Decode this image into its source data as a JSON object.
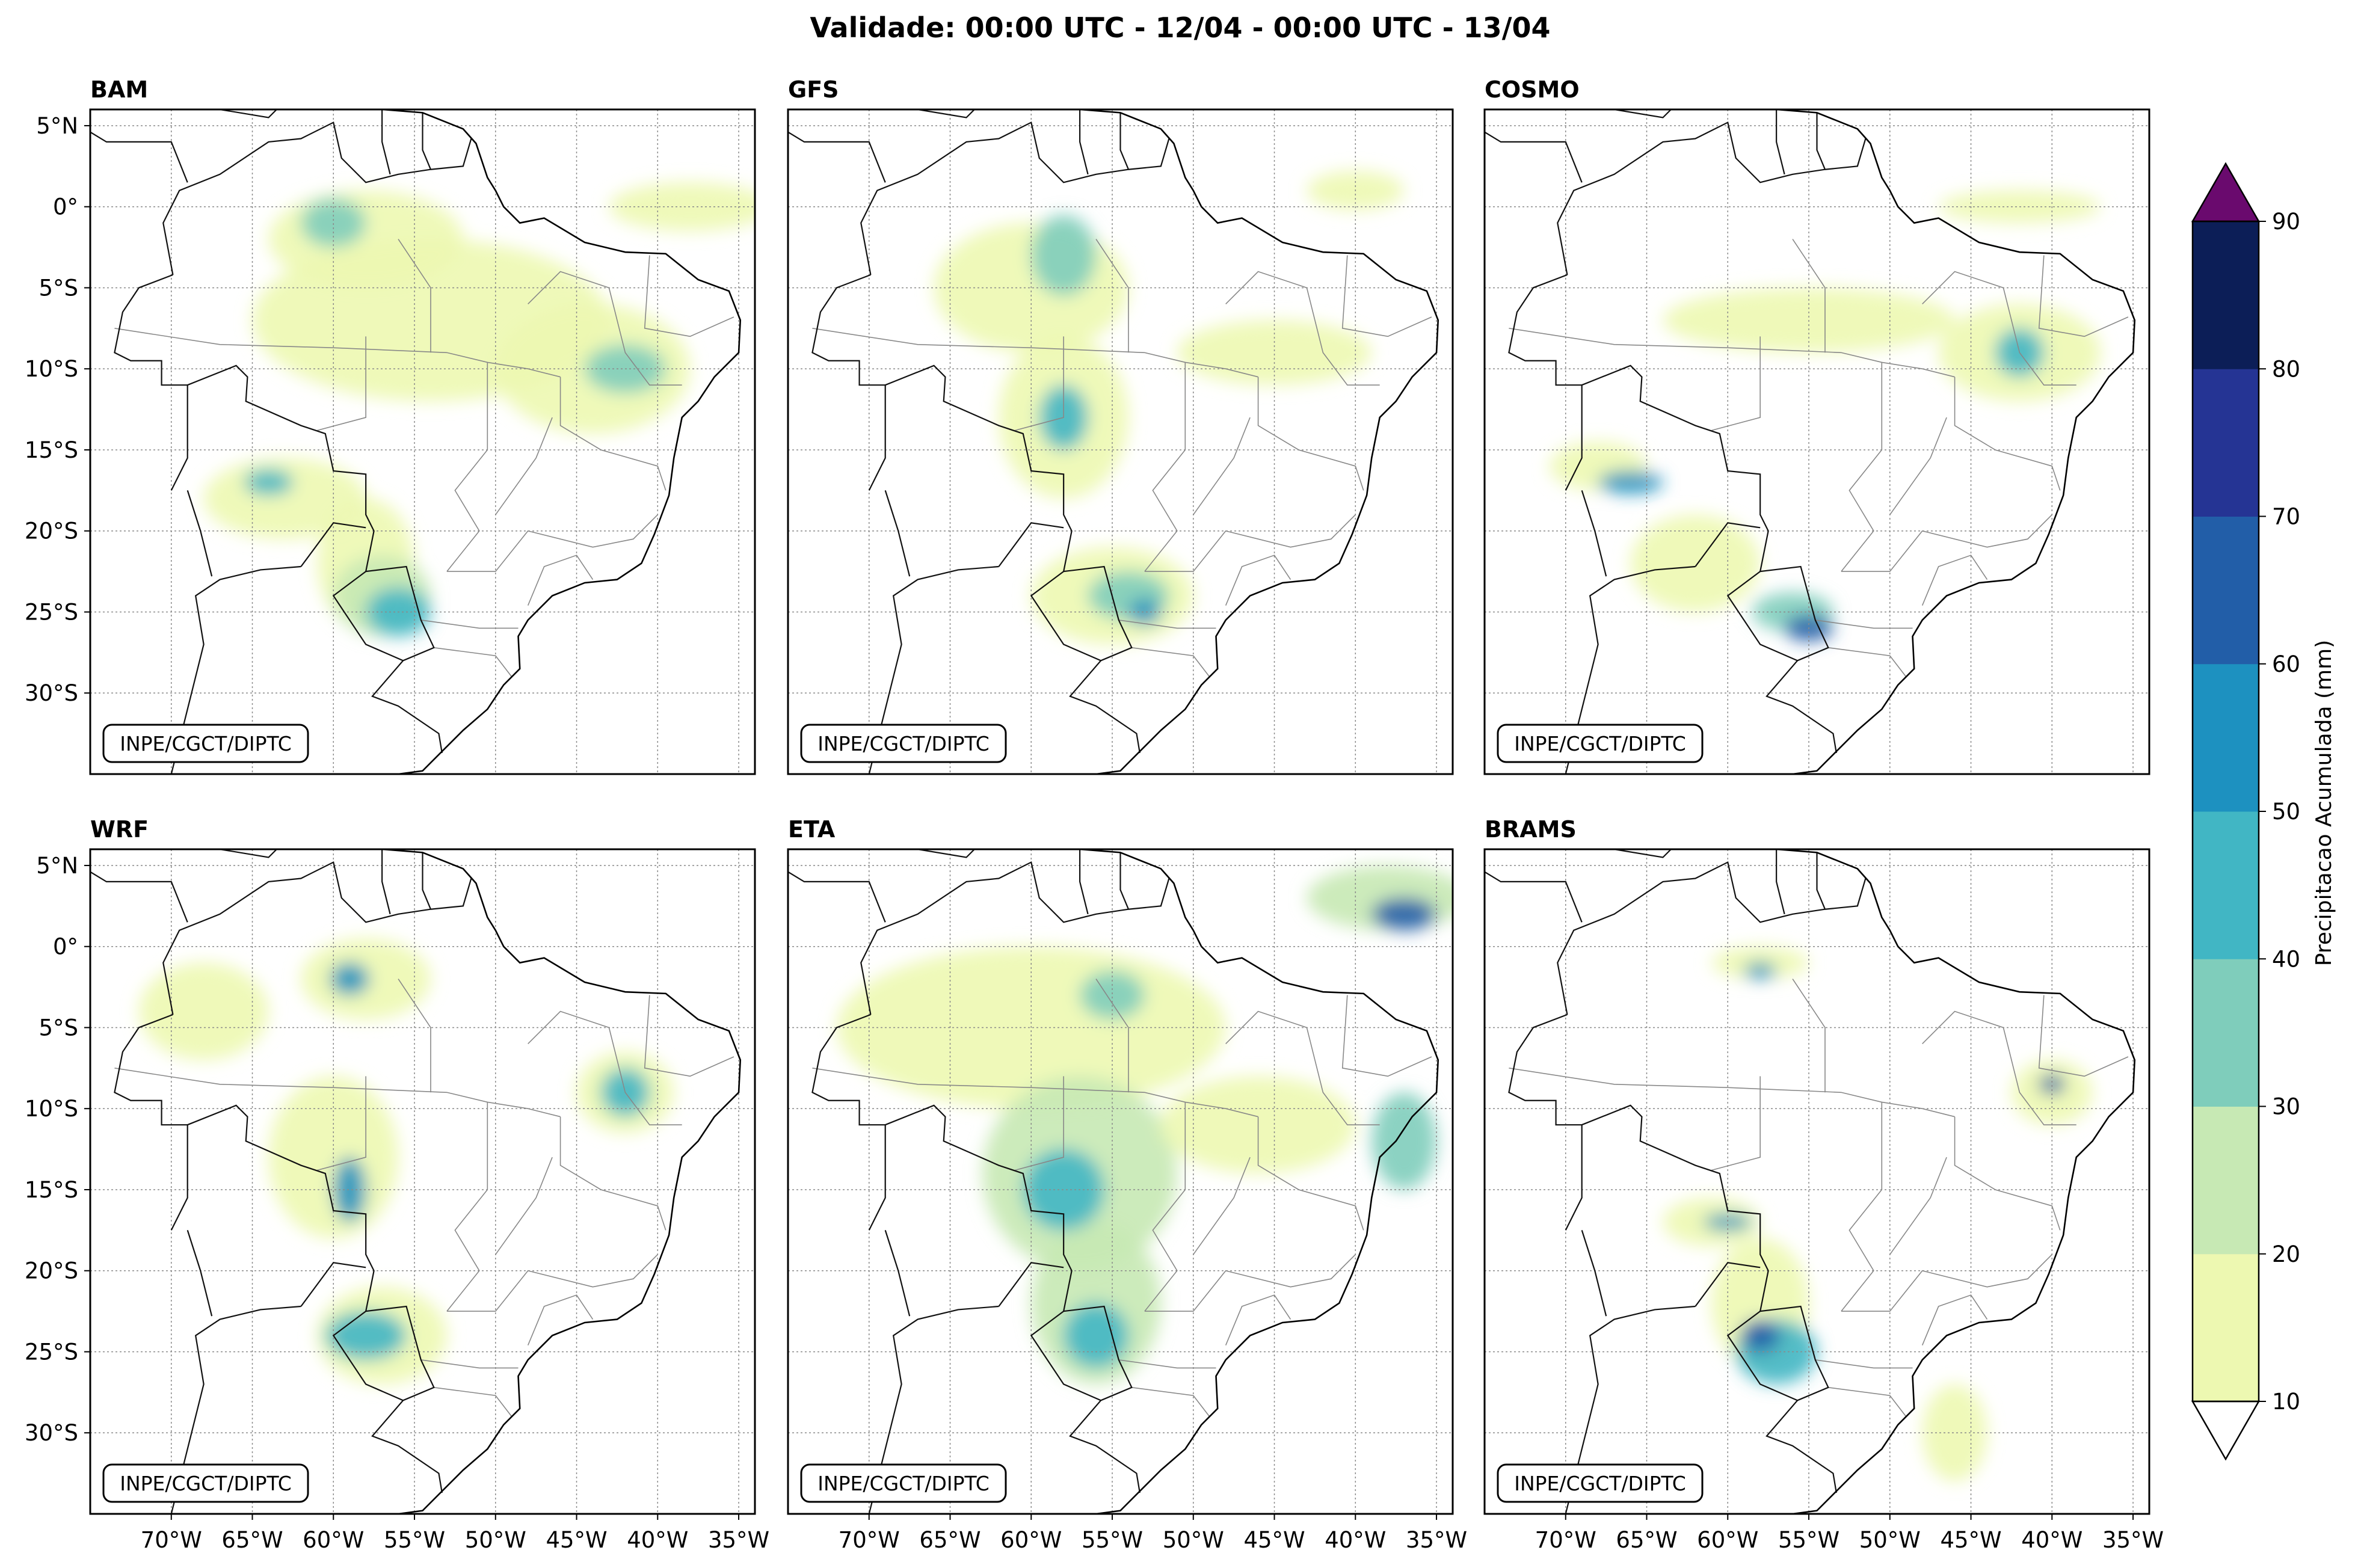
{
  "title": "Validade: 00:00 UTC - 12/04 - 00:00 UTC - 13/04",
  "credit": "INPE/CGCT/DIPTC",
  "panels": [
    {
      "model": "BAM"
    },
    {
      "model": "GFS"
    },
    {
      "model": "COSMO"
    },
    {
      "model": "WRF"
    },
    {
      "model": "ETA"
    },
    {
      "model": "BRAMS"
    }
  ],
  "lat_labels": [
    "5°N",
    "0°",
    "5°S",
    "10°S",
    "15°S",
    "20°S",
    "25°S",
    "30°S"
  ],
  "lon_labels": [
    "70°W",
    "65°W",
    "60°W",
    "55°W",
    "50°W",
    "45°W",
    "40°W",
    "35°W"
  ],
  "map_extent": {
    "lon_min": -75,
    "lon_max": -34,
    "lat_min": -35,
    "lat_max": 6
  },
  "colorbar": {
    "label": "Precipitacao Acumulada (mm)",
    "ticks": [
      "10",
      "20",
      "30",
      "40",
      "50",
      "60",
      "70",
      "80",
      "90"
    ],
    "levels": [
      10,
      20,
      30,
      40,
      50,
      60,
      70,
      80,
      90
    ],
    "colors": [
      "#edf8b1",
      "#c7e9b4",
      "#7fcdbb",
      "#41b6c4",
      "#1d91c0",
      "#225ea8",
      "#253494",
      "#0c1e57"
    ],
    "under_color": "#ffffff",
    "over_color": "#6a0a6e"
  },
  "chart_data": {
    "type": "heatmap",
    "title": "Validade: 00:00 UTC - 12/04 - 00:00 UTC - 13/04",
    "variable": "Precipitacao Acumulada (mm)",
    "panels": [
      "BAM",
      "GFS",
      "COSMO",
      "WRF",
      "ETA",
      "BRAMS"
    ],
    "xlabel": "",
    "ylabel": "",
    "xlim": [
      -75,
      -34
    ],
    "ylim": [
      -35,
      6
    ],
    "levels": [
      10,
      20,
      30,
      40,
      50,
      60,
      70,
      80,
      90
    ]
  }
}
